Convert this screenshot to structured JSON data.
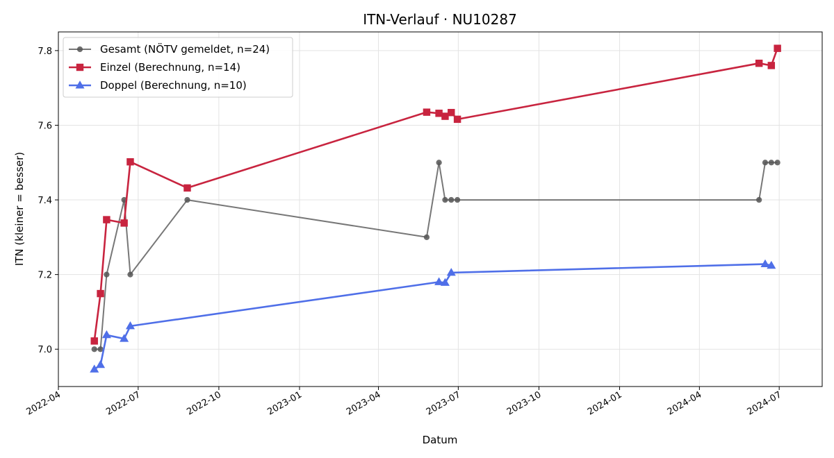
{
  "chart_data": {
    "type": "line",
    "title": "ITN-Verlauf · NU10287",
    "xlabel": "Datum",
    "ylabel": "ITN  (kleiner = besser)",
    "x_axis": "date",
    "xlim": [
      "2022-04-01",
      "2024-08-19"
    ],
    "ylim": [
      6.9,
      7.85
    ],
    "x_ticks": [
      "2022-04",
      "2022-07",
      "2022-10",
      "2023-01",
      "2023-04",
      "2023-07",
      "2023-10",
      "2024-01",
      "2024-04",
      "2024-07"
    ],
    "y_ticks": [
      "7.0",
      "7.2",
      "7.4",
      "7.6",
      "7.8"
    ],
    "grid": true,
    "legend_position": "top-left",
    "series": [
      {
        "name": "Gesamt (NÖTV gemeldet, n=24)",
        "color": "#555555",
        "marker": "circle",
        "points": [
          {
            "x": "2022-05-12",
            "y": 7.0
          },
          {
            "x": "2022-05-19",
            "y": 7.0
          },
          {
            "x": "2022-05-26",
            "y": 7.2
          },
          {
            "x": "2022-06-15",
            "y": 7.4
          },
          {
            "x": "2022-06-22",
            "y": 7.2
          },
          {
            "x": "2022-08-26",
            "y": 7.4
          },
          {
            "x": "2023-05-26",
            "y": 7.3
          },
          {
            "x": "2023-06-09",
            "y": 7.5
          },
          {
            "x": "2023-06-16",
            "y": 7.4
          },
          {
            "x": "2023-06-23",
            "y": 7.4
          },
          {
            "x": "2023-06-30",
            "y": 7.4
          },
          {
            "x": "2024-06-08",
            "y": 7.4
          },
          {
            "x": "2024-06-15",
            "y": 7.5
          },
          {
            "x": "2024-06-22",
            "y": 7.5
          },
          {
            "x": "2024-06-29",
            "y": 7.5
          }
        ]
      },
      {
        "name": "Einzel (Berechnung, n=14)",
        "color": "#c8243f",
        "marker": "square",
        "points": [
          {
            "x": "2022-05-12",
            "y": 7.022
          },
          {
            "x": "2022-05-19",
            "y": 7.149
          },
          {
            "x": "2022-05-26",
            "y": 7.347
          },
          {
            "x": "2022-06-15",
            "y": 7.338
          },
          {
            "x": "2022-06-22",
            "y": 7.502
          },
          {
            "x": "2022-08-26",
            "y": 7.432
          },
          {
            "x": "2023-05-26",
            "y": 7.635
          },
          {
            "x": "2023-06-09",
            "y": 7.632
          },
          {
            "x": "2023-06-16",
            "y": 7.624
          },
          {
            "x": "2023-06-23",
            "y": 7.634
          },
          {
            "x": "2023-06-30",
            "y": 7.616
          },
          {
            "x": "2024-06-08",
            "y": 7.766
          },
          {
            "x": "2024-06-22",
            "y": 7.76
          },
          {
            "x": "2024-06-29",
            "y": 7.806
          }
        ]
      },
      {
        "name": "Doppel (Berechnung, n=10)",
        "color": "#4f6fe8",
        "marker": "triangle",
        "points": [
          {
            "x": "2022-05-12",
            "y": 6.946
          },
          {
            "x": "2022-05-19",
            "y": 6.958
          },
          {
            "x": "2022-05-26",
            "y": 7.038
          },
          {
            "x": "2022-06-15",
            "y": 7.028
          },
          {
            "x": "2022-06-22",
            "y": 7.062
          },
          {
            "x": "2023-06-09",
            "y": 7.18
          },
          {
            "x": "2023-06-16",
            "y": 7.178
          },
          {
            "x": "2023-06-23",
            "y": 7.205
          },
          {
            "x": "2024-06-15",
            "y": 7.228
          },
          {
            "x": "2024-06-22",
            "y": 7.224
          }
        ]
      }
    ]
  }
}
